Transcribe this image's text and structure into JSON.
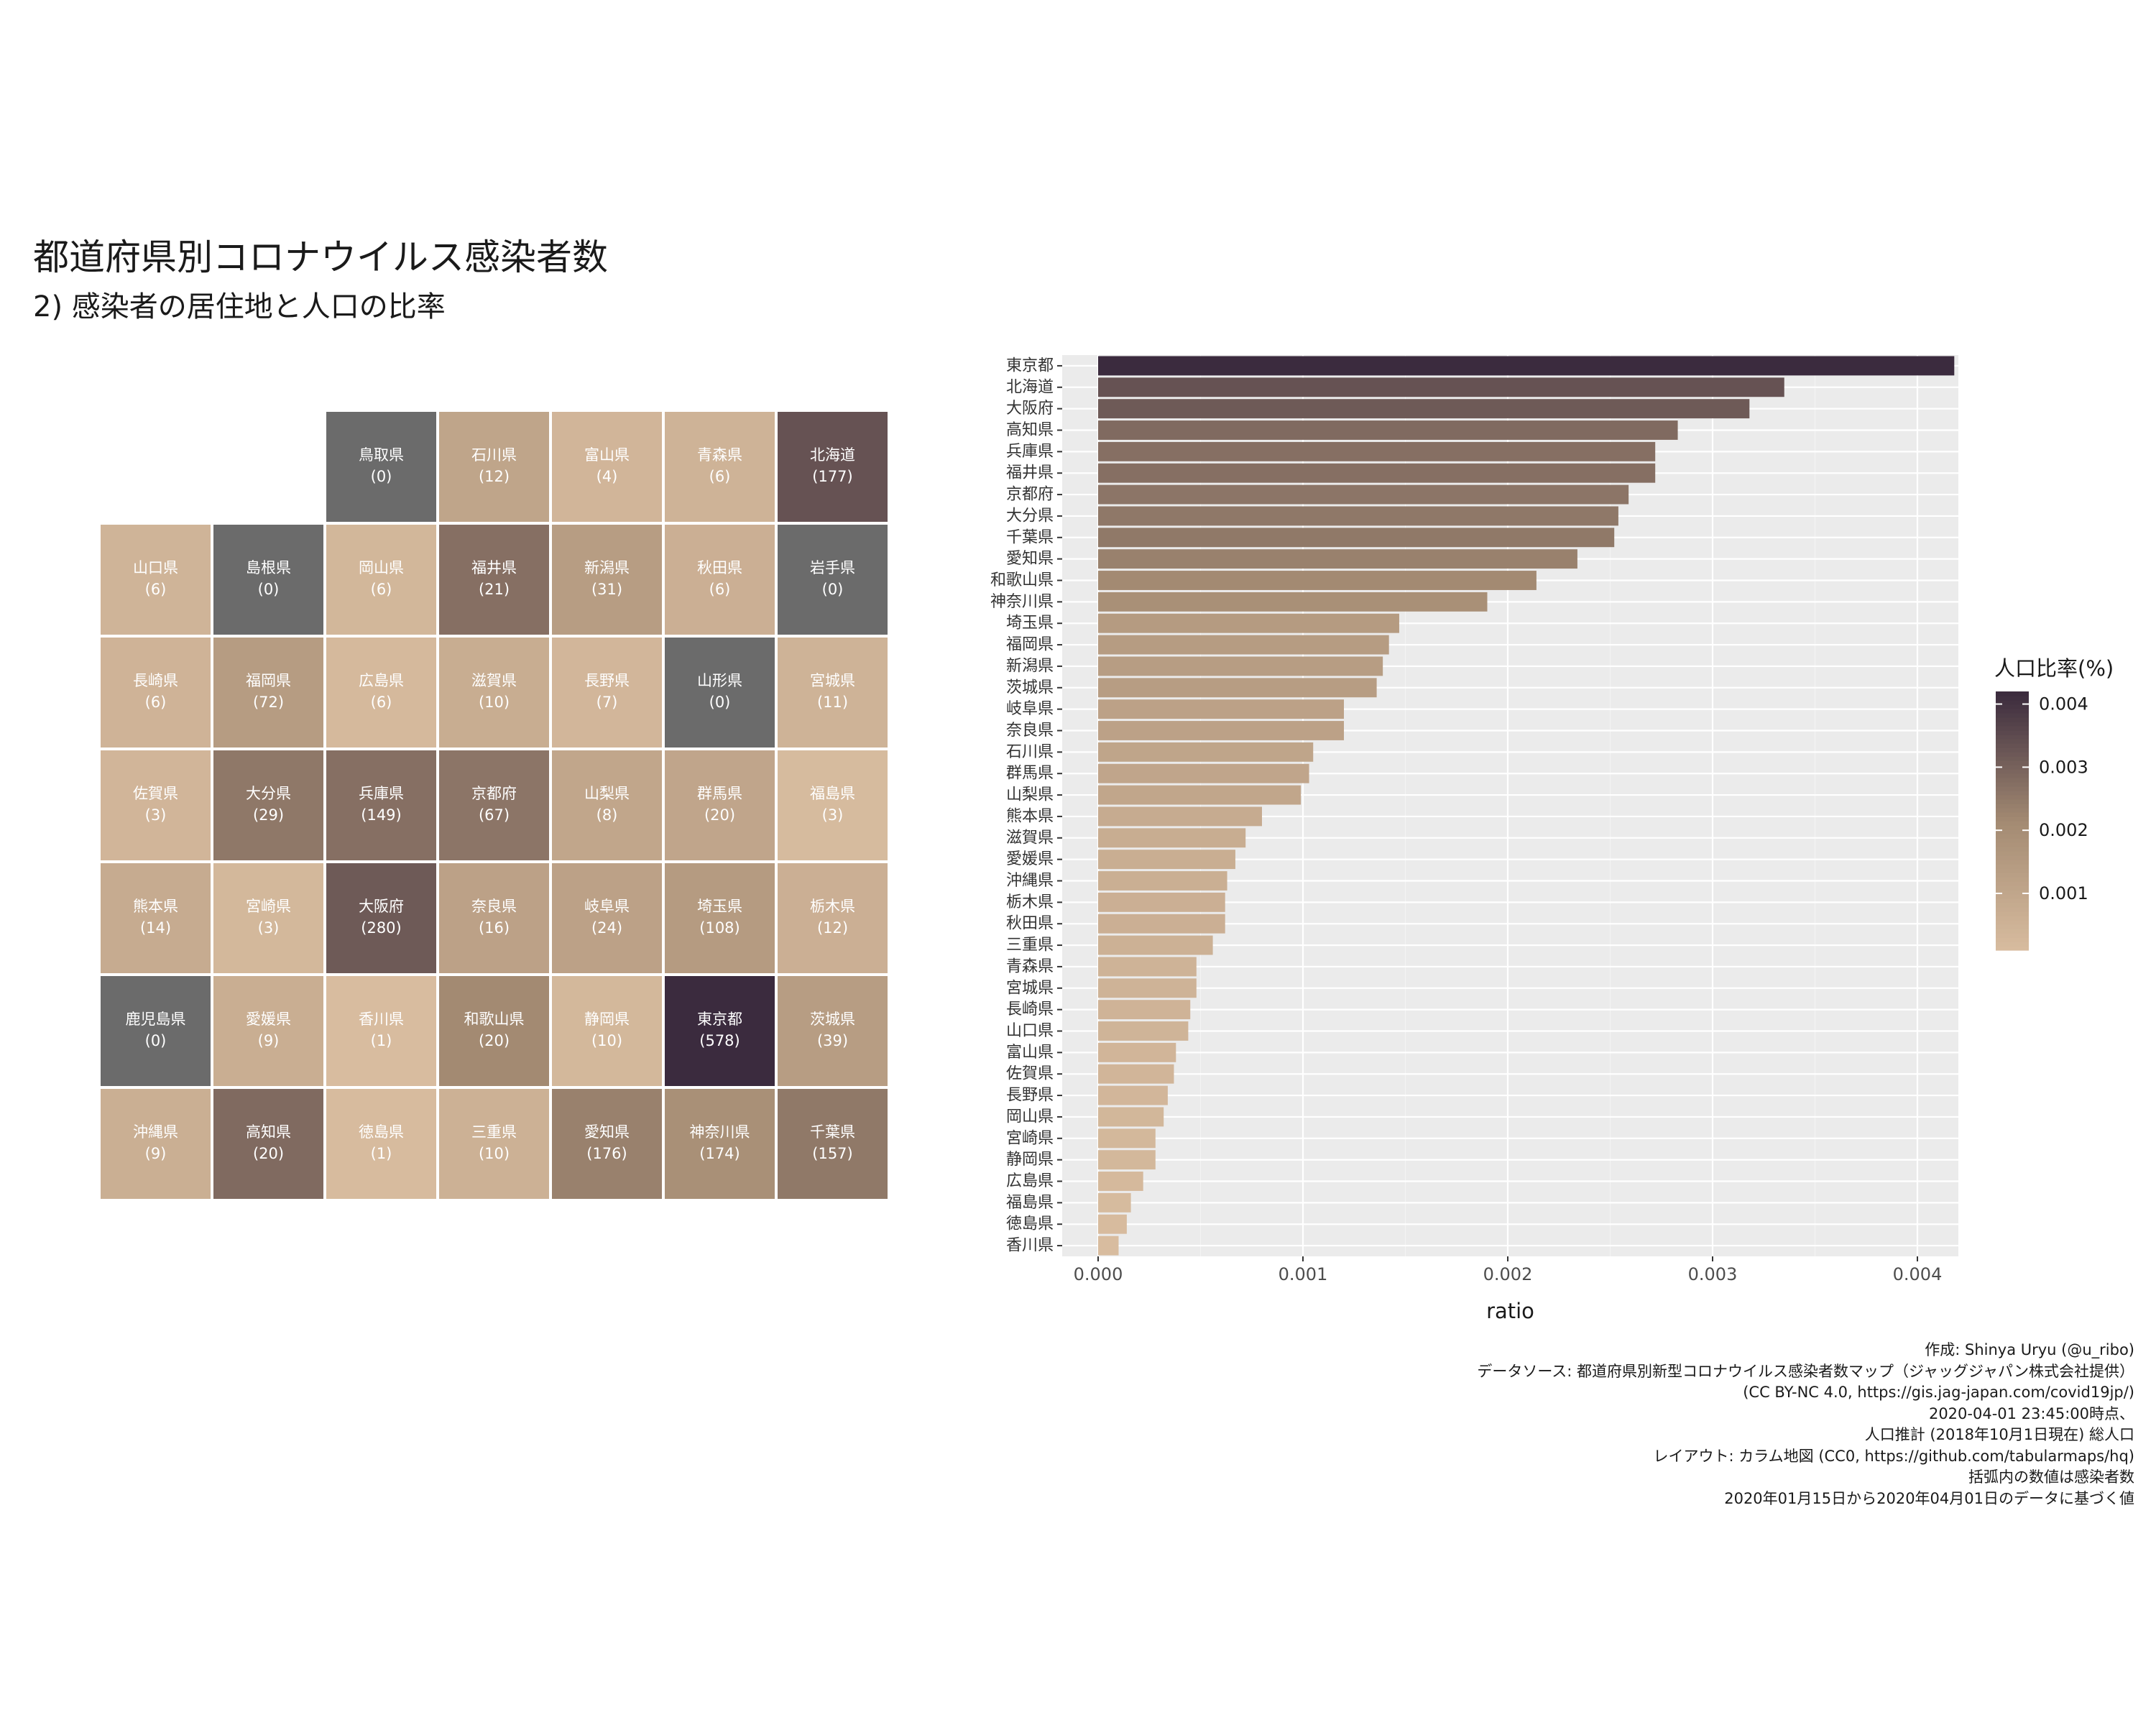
{
  "title": "都道府県別コロナウイルス感染者数",
  "subtitle": "2) 感染者の居住地と人口の比率",
  "palette": {
    "low": "#d8bc9f",
    "mid": "#a38a72",
    "high": "#3a2a3d",
    "zero": "#6b6b6b"
  },
  "tile_map": {
    "tiles": [
      {
        "name": "鳥取県",
        "count_label": "(0)",
        "count": 0,
        "row": 0,
        "col": 2
      },
      {
        "name": "石川県",
        "count_label": "(12)",
        "count": 12,
        "row": 0,
        "col": 3
      },
      {
        "name": "富山県",
        "count_label": "(4)",
        "count": 4,
        "row": 0,
        "col": 4
      },
      {
        "name": "青森県",
        "count_label": "(6)",
        "count": 6,
        "row": 0,
        "col": 5
      },
      {
        "name": "北海道",
        "count_label": "(177)",
        "count": 177,
        "row": 0,
        "col": 6
      },
      {
        "name": "山口県",
        "count_label": "(6)",
        "count": 6,
        "row": 1,
        "col": 0
      },
      {
        "name": "島根県",
        "count_label": "(0)",
        "count": 0,
        "row": 1,
        "col": 1
      },
      {
        "name": "岡山県",
        "count_label": "(6)",
        "count": 6,
        "row": 1,
        "col": 2
      },
      {
        "name": "福井県",
        "count_label": "(21)",
        "count": 21,
        "row": 1,
        "col": 3
      },
      {
        "name": "新潟県",
        "count_label": "(31)",
        "count": 31,
        "row": 1,
        "col": 4
      },
      {
        "name": "秋田県",
        "count_label": "(6)",
        "count": 6,
        "row": 1,
        "col": 5
      },
      {
        "name": "岩手県",
        "count_label": "(0)",
        "count": 0,
        "row": 1,
        "col": 6
      },
      {
        "name": "長崎県",
        "count_label": "(6)",
        "count": 6,
        "row": 2,
        "col": 0
      },
      {
        "name": "福岡県",
        "count_label": "(72)",
        "count": 72,
        "row": 2,
        "col": 1
      },
      {
        "name": "広島県",
        "count_label": "(6)",
        "count": 6,
        "row": 2,
        "col": 2
      },
      {
        "name": "滋賀県",
        "count_label": "(10)",
        "count": 10,
        "row": 2,
        "col": 3
      },
      {
        "name": "長野県",
        "count_label": "(7)",
        "count": 7,
        "row": 2,
        "col": 4
      },
      {
        "name": "山形県",
        "count_label": "(0)",
        "count": 0,
        "row": 2,
        "col": 5
      },
      {
        "name": "宮城県",
        "count_label": "(11)",
        "count": 11,
        "row": 2,
        "col": 6
      },
      {
        "name": "佐賀県",
        "count_label": "(3)",
        "count": 3,
        "row": 3,
        "col": 0
      },
      {
        "name": "大分県",
        "count_label": "(29)",
        "count": 29,
        "row": 3,
        "col": 1
      },
      {
        "name": "兵庫県",
        "count_label": "(149)",
        "count": 149,
        "row": 3,
        "col": 2
      },
      {
        "name": "京都府",
        "count_label": "(67)",
        "count": 67,
        "row": 3,
        "col": 3
      },
      {
        "name": "山梨県",
        "count_label": "(8)",
        "count": 8,
        "row": 3,
        "col": 4
      },
      {
        "name": "群馬県",
        "count_label": "(20)",
        "count": 20,
        "row": 3,
        "col": 5
      },
      {
        "name": "福島県",
        "count_label": "(3)",
        "count": 3,
        "row": 3,
        "col": 6
      },
      {
        "name": "熊本県",
        "count_label": "(14)",
        "count": 14,
        "row": 4,
        "col": 0
      },
      {
        "name": "宮崎県",
        "count_label": "(3)",
        "count": 3,
        "row": 4,
        "col": 1
      },
      {
        "name": "大阪府",
        "count_label": "(280)",
        "count": 280,
        "row": 4,
        "col": 2
      },
      {
        "name": "奈良県",
        "count_label": "(16)",
        "count": 16,
        "row": 4,
        "col": 3
      },
      {
        "name": "岐阜県",
        "count_label": "(24)",
        "count": 24,
        "row": 4,
        "col": 4
      },
      {
        "name": "埼玉県",
        "count_label": "(108)",
        "count": 108,
        "row": 4,
        "col": 5
      },
      {
        "name": "栃木県",
        "count_label": "(12)",
        "count": 12,
        "row": 4,
        "col": 6
      },
      {
        "name": "鹿児島県",
        "count_label": "(0)",
        "count": 0,
        "row": 5,
        "col": 0
      },
      {
        "name": "愛媛県",
        "count_label": "(9)",
        "count": 9,
        "row": 5,
        "col": 1
      },
      {
        "name": "香川県",
        "count_label": "(1)",
        "count": 1,
        "row": 5,
        "col": 2
      },
      {
        "name": "和歌山県",
        "count_label": "(20)",
        "count": 20,
        "row": 5,
        "col": 3
      },
      {
        "name": "静岡県",
        "count_label": "(10)",
        "count": 10,
        "row": 5,
        "col": 4
      },
      {
        "name": "東京都",
        "count_label": "(578)",
        "count": 578,
        "row": 5,
        "col": 5
      },
      {
        "name": "茨城県",
        "count_label": "(39)",
        "count": 39,
        "row": 5,
        "col": 6
      },
      {
        "name": "沖縄県",
        "count_label": "(9)",
        "count": 9,
        "row": 6,
        "col": 0
      },
      {
        "name": "高知県",
        "count_label": "(20)",
        "count": 20,
        "row": 6,
        "col": 1
      },
      {
        "name": "徳島県",
        "count_label": "(1)",
        "count": 1,
        "row": 6,
        "col": 2
      },
      {
        "name": "三重県",
        "count_label": "(10)",
        "count": 10,
        "row": 6,
        "col": 3
      },
      {
        "name": "愛知県",
        "count_label": "(176)",
        "count": 176,
        "row": 6,
        "col": 4
      },
      {
        "name": "神奈川県",
        "count_label": "(174)",
        "count": 174,
        "row": 6,
        "col": 5
      },
      {
        "name": "千葉県",
        "count_label": "(157)",
        "count": 157,
        "row": 6,
        "col": 6
      }
    ]
  },
  "chart_data": {
    "type": "bar",
    "orientation": "horizontal",
    "xlabel": "ratio",
    "ylabel": "",
    "xlim": [
      0,
      0.0044
    ],
    "x_ticks": [
      0,
      0.001,
      0.002,
      0.003,
      0.004
    ],
    "x_tick_labels": [
      "0.000",
      "0.001",
      "0.002",
      "0.003",
      "0.004"
    ],
    "grid": true,
    "categories": [
      "東京都",
      "北海道",
      "大阪府",
      "高知県",
      "兵庫県",
      "福井県",
      "京都府",
      "大分県",
      "千葉県",
      "愛知県",
      "和歌山県",
      "神奈川県",
      "埼玉県",
      "福岡県",
      "新潟県",
      "茨城県",
      "岐阜県",
      "奈良県",
      "石川県",
      "群馬県",
      "山梨県",
      "熊本県",
      "滋賀県",
      "愛媛県",
      "沖縄県",
      "栃木県",
      "秋田県",
      "三重県",
      "青森県",
      "宮城県",
      "長崎県",
      "山口県",
      "富山県",
      "佐賀県",
      "長野県",
      "岡山県",
      "宮崎県",
      "静岡県",
      "広島県",
      "福島県",
      "徳島県",
      "香川県"
    ],
    "values": [
      0.00418,
      0.00335,
      0.00318,
      0.00283,
      0.00272,
      0.00272,
      0.00259,
      0.00254,
      0.00252,
      0.00234,
      0.00214,
      0.0019,
      0.00147,
      0.00142,
      0.00139,
      0.00136,
      0.0012,
      0.0012,
      0.00105,
      0.00103,
      0.00099,
      0.0008,
      0.00072,
      0.00067,
      0.00063,
      0.00062,
      0.00062,
      0.00056,
      0.00048,
      0.00048,
      0.00045,
      0.00044,
      0.00038,
      0.00037,
      0.00034,
      0.00032,
      0.00028,
      0.00028,
      0.00022,
      0.00016,
      0.00014,
      0.0001
    ],
    "legend": {
      "title": "人口比率(%)",
      "ticks": [
        0.001,
        0.002,
        0.003,
        0.004
      ],
      "tick_labels": [
        "0.001",
        "0.002",
        "0.003",
        "0.004"
      ],
      "range": [
        0.0001,
        0.0042
      ],
      "position": "right"
    }
  },
  "caption": [
    "作成: Shinya Uryu (@u_ribo)",
    "データソース: 都道府県別新型コロナウイルス感染者数マップ（ジャッグジャパン株式会社提供）",
    "(CC BY-NC 4.0, https://gis.jag-japan.com/covid19jp/)",
    "2020-04-01 23:45:00時点、",
    "人口推計 (2018年10月1日現在) 総人口",
    "レイアウト: カラム地図 (CC0, https://github.com/tabularmaps/hq)",
    "括弧内の数値は感染者数",
    "2020年01月15日から2020年04月01日のデータに基づく値"
  ]
}
